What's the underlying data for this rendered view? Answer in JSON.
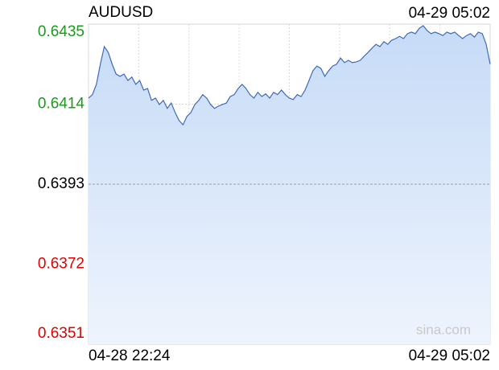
{
  "chart_data": {
    "type": "line",
    "title": "AUDUSD",
    "datetime": "04-29 05:02",
    "watermark": "sina.com",
    "x_labels": [
      "04-28 22:24",
      "04-29 05:02"
    ],
    "series": [
      {
        "name": "AUDUSD",
        "color": "#3f6ab8",
        "fill": "#cfe0f8",
        "values": [
          0.64156,
          0.64165,
          0.64192,
          0.64245,
          0.64291,
          0.64276,
          0.64245,
          0.64219,
          0.64213,
          0.64219,
          0.64202,
          0.64211,
          0.64192,
          0.64202,
          0.64177,
          0.64181,
          0.6415,
          0.64156,
          0.64139,
          0.6415,
          0.64129,
          0.64143,
          0.64118,
          0.64097,
          0.64086,
          0.64108,
          0.64118,
          0.64139,
          0.6415,
          0.64165,
          0.64156,
          0.64139,
          0.64129,
          0.64135,
          0.64139,
          0.64143,
          0.6416,
          0.64165,
          0.64181,
          0.64192,
          0.64181,
          0.64165,
          0.64156,
          0.64171,
          0.6416,
          0.64167,
          0.64156,
          0.64171,
          0.64165,
          0.64177,
          0.64165,
          0.64156,
          0.64152,
          0.64165,
          0.6416,
          0.64177,
          0.64202,
          0.64228,
          0.6424,
          0.64234,
          0.64213,
          0.64228,
          0.6424,
          0.64245,
          0.64261,
          0.64249,
          0.64255,
          0.64249,
          0.64251,
          0.64255,
          0.64266,
          0.64276,
          0.64287,
          0.64297,
          0.64291,
          0.64304,
          0.64297,
          0.64308,
          0.64312,
          0.64318,
          0.64312,
          0.64325,
          0.64329,
          0.64325,
          0.64339,
          0.64346,
          0.64333,
          0.64325,
          0.64329,
          0.64325,
          0.6432,
          0.64329,
          0.64325,
          0.64329,
          0.6432,
          0.64312,
          0.6432,
          0.64325,
          0.64316,
          0.64329,
          0.64325,
          0.64297,
          0.64245
        ]
      }
    ],
    "ylim": [
      0.6351,
      0.6435
    ],
    "yticks": [
      0.6435,
      0.6414,
      0.6393,
      0.6372,
      0.6351
    ],
    "ytick_colors": [
      "#1a9a1a",
      "#1a9a1a",
      "#000000",
      "#e00000",
      "#e00000"
    ],
    "prev_close": 0.6393,
    "grid": true
  }
}
